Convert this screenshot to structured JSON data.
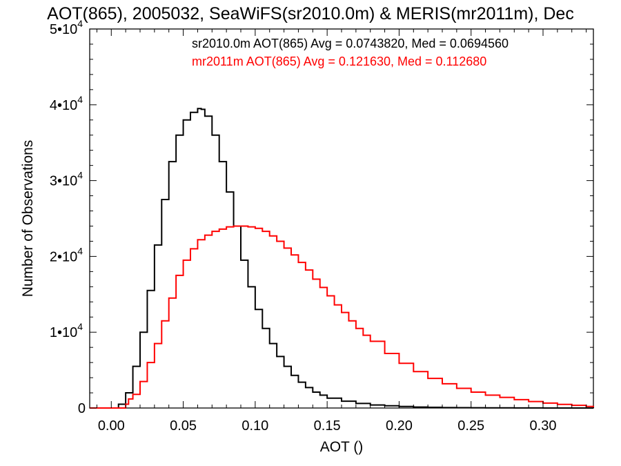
{
  "chart_data": {
    "type": "histogram",
    "title": "AOT(865), 2005032, SeaWiFS(sr2010.0m) & MERIS(mr2011m), Dec",
    "xlabel": "AOT ()",
    "ylabel": "Number of Observations",
    "xlim": [
      -0.015,
      0.335
    ],
    "ylim": [
      0,
      50000
    ],
    "grid": false,
    "legend_position": "top-right",
    "x_ticks": [
      {
        "value": 0.0,
        "label": "0.00"
      },
      {
        "value": 0.05,
        "label": "0.05"
      },
      {
        "value": 0.1,
        "label": "0.10"
      },
      {
        "value": 0.15,
        "label": "0.15"
      },
      {
        "value": 0.2,
        "label": "0.20"
      },
      {
        "value": 0.25,
        "label": "0.25"
      },
      {
        "value": 0.3,
        "label": "0.30"
      }
    ],
    "y_ticks": [
      {
        "value": 0,
        "mantissa": "0",
        "exponent": ""
      },
      {
        "value": 10000,
        "mantissa": "1•10",
        "exponent": "4"
      },
      {
        "value": 20000,
        "mantissa": "2•10",
        "exponent": "4"
      },
      {
        "value": 30000,
        "mantissa": "3•10",
        "exponent": "4"
      },
      {
        "value": 40000,
        "mantissa": "4•10",
        "exponent": "4"
      },
      {
        "value": 50000,
        "mantissa": "5•10",
        "exponent": "4"
      }
    ],
    "series": [
      {
        "name": "sr2010.0m",
        "color": "#000000",
        "annotation": "sr2010.0m AOT(865) Avg = 0.0743820, Med = 0.0694560",
        "x": [
          -0.015,
          0.0,
          0.005,
          0.01,
          0.015,
          0.02,
          0.025,
          0.03,
          0.035,
          0.04,
          0.045,
          0.05,
          0.055,
          0.06,
          0.0625,
          0.065,
          0.07,
          0.075,
          0.08,
          0.085,
          0.09,
          0.095,
          0.1,
          0.105,
          0.11,
          0.115,
          0.12,
          0.125,
          0.13,
          0.135,
          0.14,
          0.145,
          0.15,
          0.16,
          0.17,
          0.18,
          0.19,
          0.2,
          0.21,
          0.22,
          0.23,
          0.24,
          0.25,
          0.26,
          0.28,
          0.3,
          0.335
        ],
        "y": [
          0,
          0,
          500,
          2000,
          5500,
          10000,
          15500,
          21500,
          27500,
          32500,
          36000,
          38000,
          39000,
          39500,
          39400,
          38500,
          36000,
          32500,
          28500,
          24000,
          19500,
          16000,
          13000,
          10500,
          8500,
          6800,
          5500,
          4300,
          3400,
          2700,
          2100,
          1700,
          1300,
          900,
          600,
          400,
          300,
          200,
          130,
          90,
          60,
          45,
          30,
          20,
          10,
          5,
          0
        ]
      },
      {
        "name": "mr2011m",
        "color": "#ff0000",
        "annotation": "mr2011m AOT(865) Avg = 0.121630, Med = 0.112680",
        "x": [
          -0.015,
          0.005,
          0.01,
          0.012,
          0.015,
          0.02,
          0.025,
          0.03,
          0.035,
          0.04,
          0.045,
          0.05,
          0.055,
          0.06,
          0.065,
          0.07,
          0.075,
          0.08,
          0.085,
          0.09,
          0.095,
          0.1,
          0.105,
          0.11,
          0.115,
          0.12,
          0.125,
          0.13,
          0.135,
          0.14,
          0.145,
          0.15,
          0.155,
          0.16,
          0.165,
          0.17,
          0.175,
          0.18,
          0.19,
          0.2,
          0.21,
          0.22,
          0.23,
          0.24,
          0.25,
          0.26,
          0.27,
          0.28,
          0.29,
          0.3,
          0.31,
          0.32,
          0.33,
          0.335
        ],
        "y": [
          0,
          0,
          500,
          1200,
          1800,
          3500,
          6000,
          8500,
          11500,
          14500,
          17500,
          19500,
          21000,
          22200,
          22800,
          23300,
          23600,
          23900,
          24000,
          24000,
          23900,
          23700,
          23300,
          22700,
          22000,
          21100,
          20200,
          19200,
          18200,
          17000,
          15900,
          14800,
          13600,
          12600,
          11500,
          10500,
          9600,
          8800,
          7200,
          5900,
          4800,
          3900,
          3200,
          2600,
          2100,
          1700,
          1400,
          1100,
          850,
          650,
          480,
          350,
          200,
          100
        ]
      }
    ]
  }
}
